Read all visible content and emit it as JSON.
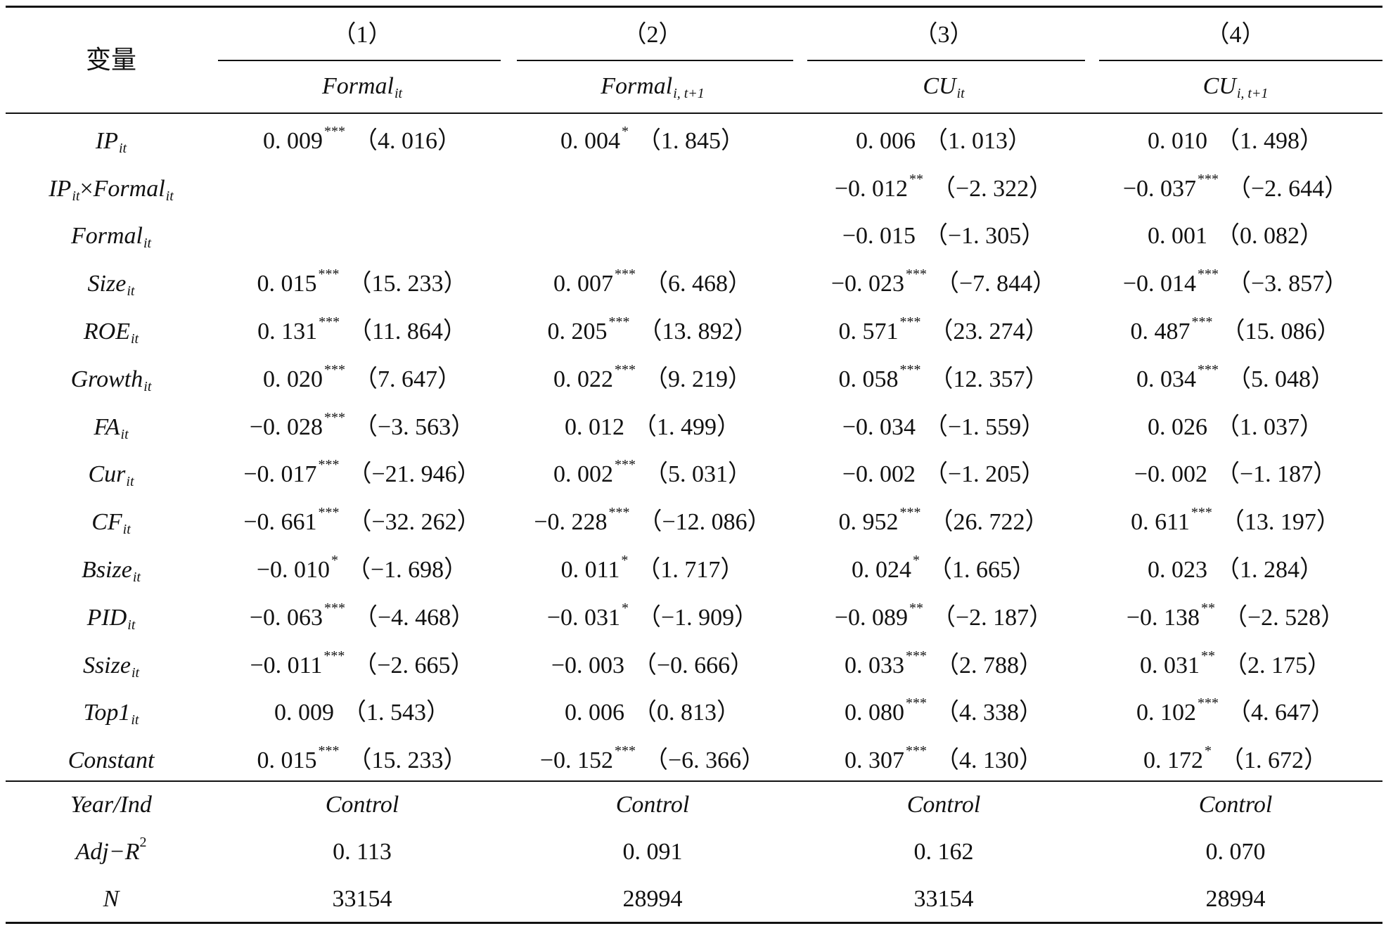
{
  "table": {
    "var_header": "变量",
    "columns": [
      {
        "number": "（1）",
        "dep_main": "Formal",
        "dep_sub": "it"
      },
      {
        "number": "（2）",
        "dep_main": "Formal",
        "dep_sub": "i, t+1"
      },
      {
        "number": "（3）",
        "dep_main": "CU",
        "dep_sub": "it"
      },
      {
        "number": "（4）",
        "dep_main": "CU",
        "dep_sub": "i, t+1"
      }
    ],
    "rows": [
      {
        "var_main": "IP",
        "var_sub": "it",
        "var_mid": "",
        "var_main2": "",
        "var_sub2": "",
        "cells": [
          {
            "coef": "0. 009",
            "sig": "***",
            "t": "（4. 016）"
          },
          {
            "coef": "0. 004",
            "sig": "*",
            "t": "（1. 845）"
          },
          {
            "coef": "0. 006",
            "sig": "",
            "t": "（1. 013）"
          },
          {
            "coef": "0. 010",
            "sig": "",
            "t": "（1. 498）"
          }
        ]
      },
      {
        "var_main": "IP",
        "var_sub": "it",
        "var_mid": "×",
        "var_main2": "Formal",
        "var_sub2": "it",
        "cells": [
          {
            "coef": "",
            "sig": "",
            "t": ""
          },
          {
            "coef": "",
            "sig": "",
            "t": ""
          },
          {
            "coef": "−0. 012",
            "sig": "**",
            "t": "（−2. 322）"
          },
          {
            "coef": "−0. 037",
            "sig": "***",
            "t": "（−2. 644）"
          }
        ]
      },
      {
        "var_main": "Formal",
        "var_sub": "it",
        "var_mid": "",
        "var_main2": "",
        "var_sub2": "",
        "cells": [
          {
            "coef": "",
            "sig": "",
            "t": ""
          },
          {
            "coef": "",
            "sig": "",
            "t": ""
          },
          {
            "coef": "−0. 015",
            "sig": "",
            "t": "（−1. 305）"
          },
          {
            "coef": "0. 001",
            "sig": "",
            "t": "（0. 082）"
          }
        ]
      },
      {
        "var_main": "Size",
        "var_sub": "it",
        "var_mid": "",
        "var_main2": "",
        "var_sub2": "",
        "cells": [
          {
            "coef": "0. 015",
            "sig": "***",
            "t": "（15. 233）"
          },
          {
            "coef": "0. 007",
            "sig": "***",
            "t": "（6. 468）"
          },
          {
            "coef": "−0. 023",
            "sig": "***",
            "t": "（−7. 844）"
          },
          {
            "coef": "−0. 014",
            "sig": "***",
            "t": "（−3. 857）"
          }
        ]
      },
      {
        "var_main": "ROE",
        "var_sub": "it",
        "var_mid": "",
        "var_main2": "",
        "var_sub2": "",
        "cells": [
          {
            "coef": "0. 131",
            "sig": "***",
            "t": "（11. 864）"
          },
          {
            "coef": "0. 205",
            "sig": "***",
            "t": "（13. 892）"
          },
          {
            "coef": "0. 571",
            "sig": "***",
            "t": "（23. 274）"
          },
          {
            "coef": "0. 487",
            "sig": "***",
            "t": "（15. 086）"
          }
        ]
      },
      {
        "var_main": "Growth",
        "var_sub": "it",
        "var_mid": "",
        "var_main2": "",
        "var_sub2": "",
        "cells": [
          {
            "coef": "0. 020",
            "sig": "***",
            "t": "（7. 647）"
          },
          {
            "coef": "0. 022",
            "sig": "***",
            "t": "（9. 219）"
          },
          {
            "coef": "0. 058",
            "sig": "***",
            "t": "（12. 357）"
          },
          {
            "coef": "0. 034",
            "sig": "***",
            "t": "（5. 048）"
          }
        ]
      },
      {
        "var_main": "FA",
        "var_sub": "it",
        "var_mid": "",
        "var_main2": "",
        "var_sub2": "",
        "cells": [
          {
            "coef": "−0. 028",
            "sig": "***",
            "t": "（−3. 563）"
          },
          {
            "coef": "0. 012",
            "sig": "",
            "t": "（1. 499）"
          },
          {
            "coef": "−0. 034",
            "sig": "",
            "t": "（−1. 559）"
          },
          {
            "coef": "0. 026",
            "sig": "",
            "t": "（1. 037）"
          }
        ]
      },
      {
        "var_main": "Cur",
        "var_sub": "it",
        "var_mid": "",
        "var_main2": "",
        "var_sub2": "",
        "cells": [
          {
            "coef": "−0. 017",
            "sig": "***",
            "t": "（−21. 946）"
          },
          {
            "coef": "0. 002",
            "sig": "***",
            "t": "（5. 031）"
          },
          {
            "coef": "−0. 002",
            "sig": "",
            "t": "（−1. 205）"
          },
          {
            "coef": "−0. 002",
            "sig": "",
            "t": "（−1. 187）"
          }
        ]
      },
      {
        "var_main": "CF",
        "var_sub": "it",
        "var_mid": "",
        "var_main2": "",
        "var_sub2": "",
        "cells": [
          {
            "coef": "−0. 661",
            "sig": "***",
            "t": "（−32. 262）"
          },
          {
            "coef": "−0. 228",
            "sig": "***",
            "t": "（−12. 086）"
          },
          {
            "coef": "0. 952",
            "sig": "***",
            "t": "（26. 722）"
          },
          {
            "coef": "0. 611",
            "sig": "***",
            "t": "（13. 197）"
          }
        ]
      },
      {
        "var_main": "Bsize",
        "var_sub": "it",
        "var_mid": "",
        "var_main2": "",
        "var_sub2": "",
        "cells": [
          {
            "coef": "−0. 010",
            "sig": "*",
            "t": "（−1. 698）"
          },
          {
            "coef": "0. 011",
            "sig": "*",
            "t": "（1. 717）"
          },
          {
            "coef": "0. 024",
            "sig": "*",
            "t": "（1. 665）"
          },
          {
            "coef": "0. 023",
            "sig": "",
            "t": "（1. 284）"
          }
        ]
      },
      {
        "var_main": "PID",
        "var_sub": "it",
        "var_mid": "",
        "var_main2": "",
        "var_sub2": "",
        "cells": [
          {
            "coef": "−0. 063",
            "sig": "***",
            "t": "（−4. 468）"
          },
          {
            "coef": "−0. 031",
            "sig": "*",
            "t": "（−1. 909）"
          },
          {
            "coef": "−0. 089",
            "sig": "**",
            "t": "（−2. 187）"
          },
          {
            "coef": "−0. 138",
            "sig": "**",
            "t": "（−2. 528）"
          }
        ]
      },
      {
        "var_main": "Ssize",
        "var_sub": "it",
        "var_mid": "",
        "var_main2": "",
        "var_sub2": "",
        "cells": [
          {
            "coef": "−0. 011",
            "sig": "***",
            "t": "（−2. 665）"
          },
          {
            "coef": "−0. 003",
            "sig": "",
            "t": "（−0. 666）"
          },
          {
            "coef": "0. 033",
            "sig": "***",
            "t": "（2. 788）"
          },
          {
            "coef": "0. 031",
            "sig": "**",
            "t": "（2. 175）"
          }
        ]
      },
      {
        "var_main": "Top1",
        "var_sub": "it",
        "var_mid": "",
        "var_main2": "",
        "var_sub2": "",
        "cells": [
          {
            "coef": "0. 009",
            "sig": "",
            "t": "（1. 543）"
          },
          {
            "coef": "0. 006",
            "sig": "",
            "t": "（0. 813）"
          },
          {
            "coef": "0. 080",
            "sig": "***",
            "t": "（4. 338）"
          },
          {
            "coef": "0. 102",
            "sig": "***",
            "t": "（4. 647）"
          }
        ]
      },
      {
        "var_main": "Constant",
        "var_sub": "",
        "var_mid": "",
        "var_main2": "",
        "var_sub2": "",
        "cells": [
          {
            "coef": "0. 015",
            "sig": "***",
            "t": "（15. 233）"
          },
          {
            "coef": "−0. 152",
            "sig": "***",
            "t": "（−6. 366）"
          },
          {
            "coef": "0. 307",
            "sig": "***",
            "t": "（4. 130）"
          },
          {
            "coef": "0. 172",
            "sig": "*",
            "t": "（1. 672）"
          }
        ]
      }
    ],
    "footer": {
      "year_ind_label": "Year/Ind",
      "year_ind_values": [
        "Control",
        "Control",
        "Control",
        "Control"
      ],
      "adjr2_label": "Adj−R",
      "adjr2_sup": "2",
      "adjr2_values": [
        "0. 113",
        "0. 091",
        "0. 162",
        "0. 070"
      ],
      "n_label": "N",
      "n_values": [
        "33154",
        "28994",
        "33154",
        "28994"
      ]
    }
  }
}
